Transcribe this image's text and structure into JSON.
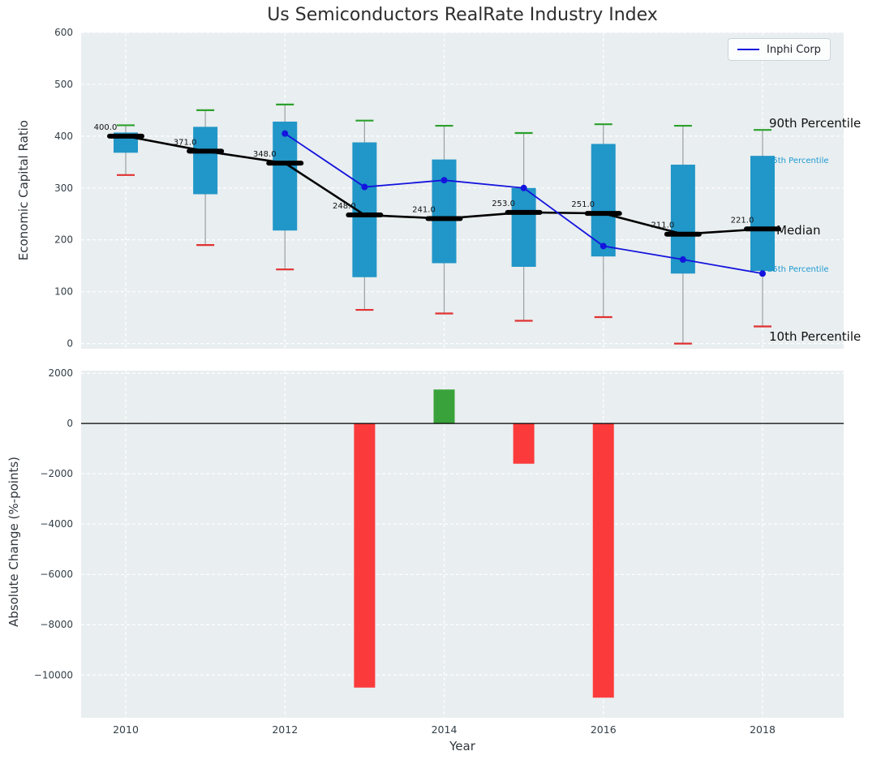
{
  "chart_data": {
    "type": "boxplot-line-bar-combo",
    "title": "Us Semiconductors RealRate Industry Index",
    "xlabel": "Year",
    "xticks": [
      2010,
      2012,
      2014,
      2016,
      2018
    ],
    "years": [
      2010,
      2011,
      2012,
      2013,
      2014,
      2015,
      2016,
      2017,
      2018
    ],
    "top_panel": {
      "ylabel": "Economic Capital Ratio",
      "ylim": [
        -10,
        600
      ],
      "yticks": [
        0,
        100,
        200,
        300,
        400,
        500,
        600
      ],
      "grid": true,
      "percentiles": [
        {
          "year": 2010,
          "p10": 325,
          "p25": 368,
          "median": 400,
          "p75": 407,
          "p90": 421
        },
        {
          "year": 2011,
          "p10": 190,
          "p25": 288,
          "median": 371,
          "p75": 418,
          "p90": 450
        },
        {
          "year": 2012,
          "p10": 143,
          "p25": 218,
          "median": 348,
          "p75": 428,
          "p90": 461
        },
        {
          "year": 2013,
          "p10": 65,
          "p25": 128,
          "median": 248,
          "p75": 388,
          "p90": 430
        },
        {
          "year": 2014,
          "p10": 58,
          "p25": 155,
          "median": 241,
          "p75": 355,
          "p90": 420
        },
        {
          "year": 2015,
          "p10": 44,
          "p25": 148,
          "median": 253,
          "p75": 300,
          "p90": 406
        },
        {
          "year": 2016,
          "p10": 51,
          "p25": 168,
          "median": 251,
          "p75": 385,
          "p90": 423
        },
        {
          "year": 2017,
          "p10": 0,
          "p25": 135,
          "median": 211,
          "p75": 345,
          "p90": 420
        },
        {
          "year": 2018,
          "p10": 33,
          "p25": 140,
          "median": 221,
          "p75": 362,
          "p90": 412
        }
      ],
      "median_labels": [
        "400.0",
        "371.0",
        "348.0",
        "248.0",
        "241.0",
        "253.0",
        "251.0",
        "211.0",
        "221.0"
      ],
      "series": [
        {
          "name": "Inphi Corp",
          "x": [
            2012,
            2013,
            2014,
            2015,
            2016,
            2017,
            2018
          ],
          "y": [
            405,
            302,
            315,
            300,
            188,
            162,
            135
          ],
          "color": "#1414dd"
        }
      ],
      "annotations": [
        {
          "text": "90th Percentile",
          "value": 412,
          "style": "large"
        },
        {
          "text": "75th Percentile",
          "value": 352,
          "style": "small"
        },
        {
          "text": "Median",
          "value": 221,
          "style": "large"
        },
        {
          "text": "25th Percentile",
          "value": 140,
          "style": "small"
        },
        {
          "text": "10th Percentile",
          "value": 18,
          "style": "large"
        }
      ]
    },
    "bottom_panel": {
      "ylabel": "Absolute Change (%-points)",
      "ylim": [
        -11700,
        2100
      ],
      "yticks": [
        2000,
        0,
        -2000,
        -4000,
        -6000,
        -8000,
        -10000
      ],
      "bars": [
        {
          "year": 2013,
          "value": -10500
        },
        {
          "year": 2014,
          "value": 1350
        },
        {
          "year": 2015,
          "value": -1600
        },
        {
          "year": 2016,
          "value": -10900
        }
      ]
    },
    "legend": {
      "position": "upper right",
      "entries": [
        {
          "label": "Inphi Corp",
          "color": "#1414dd"
        }
      ]
    },
    "colors": {
      "box_fill": "#2196c8",
      "p90_cap": "#2ca02c",
      "p10_cap": "#e03131",
      "median": "#000000",
      "inphi_line": "#1414dd",
      "bar_positive": "#3aa23a",
      "bar_negative": "#fb3b3b",
      "panel_background": "#e9eef0",
      "gridline": "#ffffff",
      "whisker": "#9aa0a4",
      "tick_label": "#333f48",
      "annotation_small": "#1e9ad2"
    }
  }
}
